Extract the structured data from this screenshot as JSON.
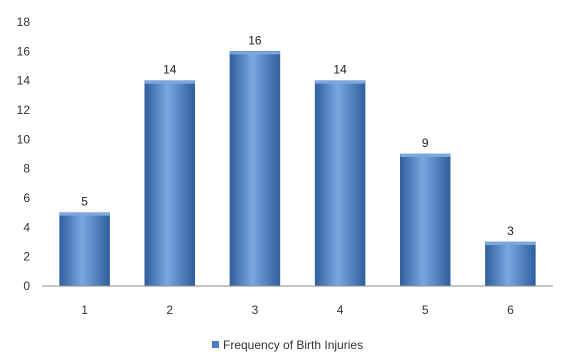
{
  "chart_data": {
    "type": "bar",
    "categories": [
      "1",
      "2",
      "3",
      "4",
      "5",
      "6"
    ],
    "series": [
      {
        "name": "Frequency of Birth Injuries",
        "values": [
          5,
          14,
          16,
          14,
          9,
          3
        ]
      }
    ],
    "data_labels": [
      "5",
      "14",
      "16",
      "14",
      "9",
      "3"
    ],
    "y_ticks": [
      "0",
      "2",
      "4",
      "6",
      "8",
      "10",
      "12",
      "14",
      "16",
      "18"
    ],
    "ylim": [
      0,
      18
    ],
    "title": "",
    "xlabel": "",
    "ylabel": "",
    "grid": false,
    "legend": {
      "position": "bottom",
      "label": "Frequency of Birth Injuries"
    },
    "colors": {
      "bar": "#4a7ebb",
      "bar_light": "#7aa7e0",
      "bar_dark": "#2f5f9e"
    }
  }
}
